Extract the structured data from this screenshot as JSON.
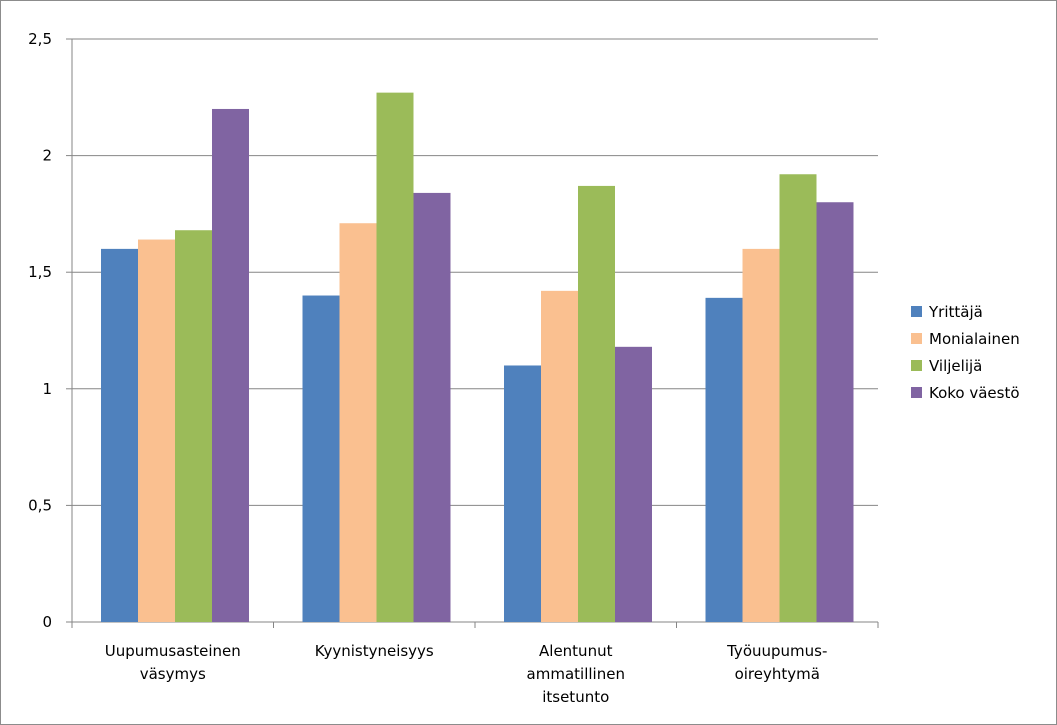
{
  "chart_data": {
    "type": "bar",
    "title": "",
    "xlabel": "",
    "ylabel": "",
    "ylim": [
      0,
      2.5
    ],
    "yticks": [
      "0",
      "0,5",
      "1",
      "1,5",
      "2",
      "2,5"
    ],
    "grid": true,
    "legend_position": "right",
    "categories": [
      [
        "Uupumusasteinen",
        "väsymys"
      ],
      [
        "Kyynistyneisyys"
      ],
      [
        "Alentunut",
        "ammatillinen",
        "itsetunto"
      ],
      [
        "Työuupumus-",
        "oireyhtymä"
      ]
    ],
    "series": [
      {
        "name": "Yrittäjä",
        "color": "#4f81bd",
        "values": [
          1.6,
          1.4,
          1.1,
          1.39
        ]
      },
      {
        "name": "Monialainen",
        "color": "#fac090",
        "values": [
          1.64,
          1.71,
          1.42,
          1.6
        ]
      },
      {
        "name": "Viljelijä",
        "color": "#9bbb59",
        "values": [
          1.68,
          2.27,
          1.87,
          1.92
        ]
      },
      {
        "name": "Koko väestö",
        "color": "#8064a2",
        "values": [
          2.2,
          1.84,
          1.18,
          1.8
        ]
      }
    ]
  }
}
